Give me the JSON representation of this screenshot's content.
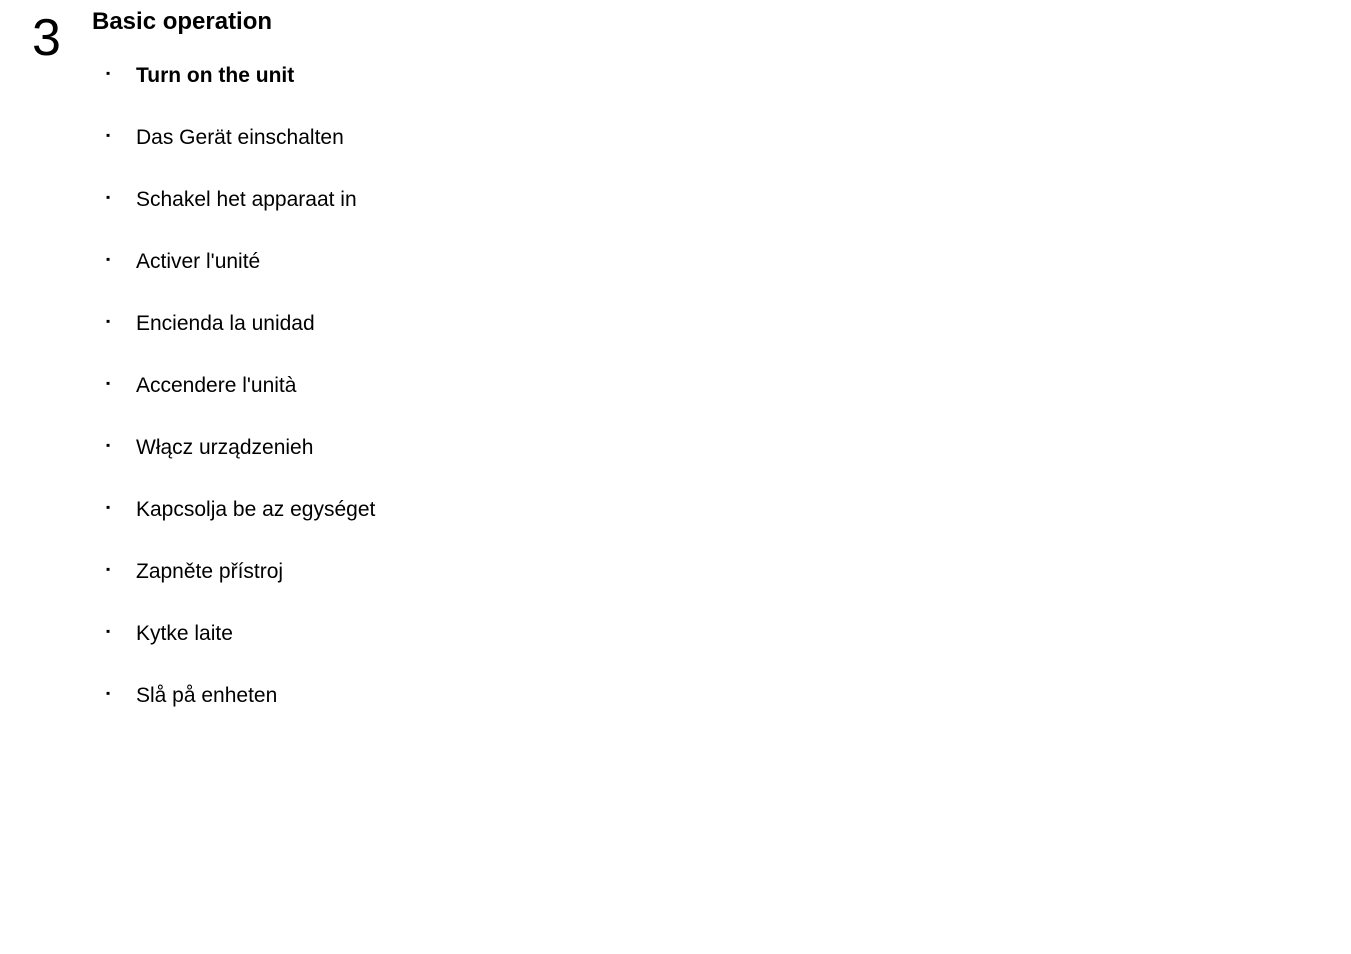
{
  "section_number": "3",
  "section_title": "Basic operation",
  "items": [
    {
      "text": "Turn on the unit",
      "bold": true
    },
    {
      "text": "Das Gerät einschalten",
      "bold": false
    },
    {
      "text": "Schakel het apparaat in",
      "bold": false
    },
    {
      "text": "Activer l'unité",
      "bold": false
    },
    {
      "text": "Encienda la unidad",
      "bold": false
    },
    {
      "text": "Accendere l'unità",
      "bold": false
    },
    {
      "text": "Włącz urządzenieh",
      "bold": false
    },
    {
      "text": "Kapcsolja be az egységet",
      "bold": false
    },
    {
      "text": "Zapněte přístroj",
      "bold": false
    },
    {
      "text": "Kytke laite",
      "bold": false
    },
    {
      "text": "Slå på enheten",
      "bold": false
    }
  ],
  "colors": {
    "background": "#ffffff",
    "text": "#000000"
  },
  "typography": {
    "section_number_fontsize": 52,
    "title_fontsize": 24,
    "item_fontsize": 21,
    "font_family": "Arial, Helvetica, sans-serif"
  }
}
